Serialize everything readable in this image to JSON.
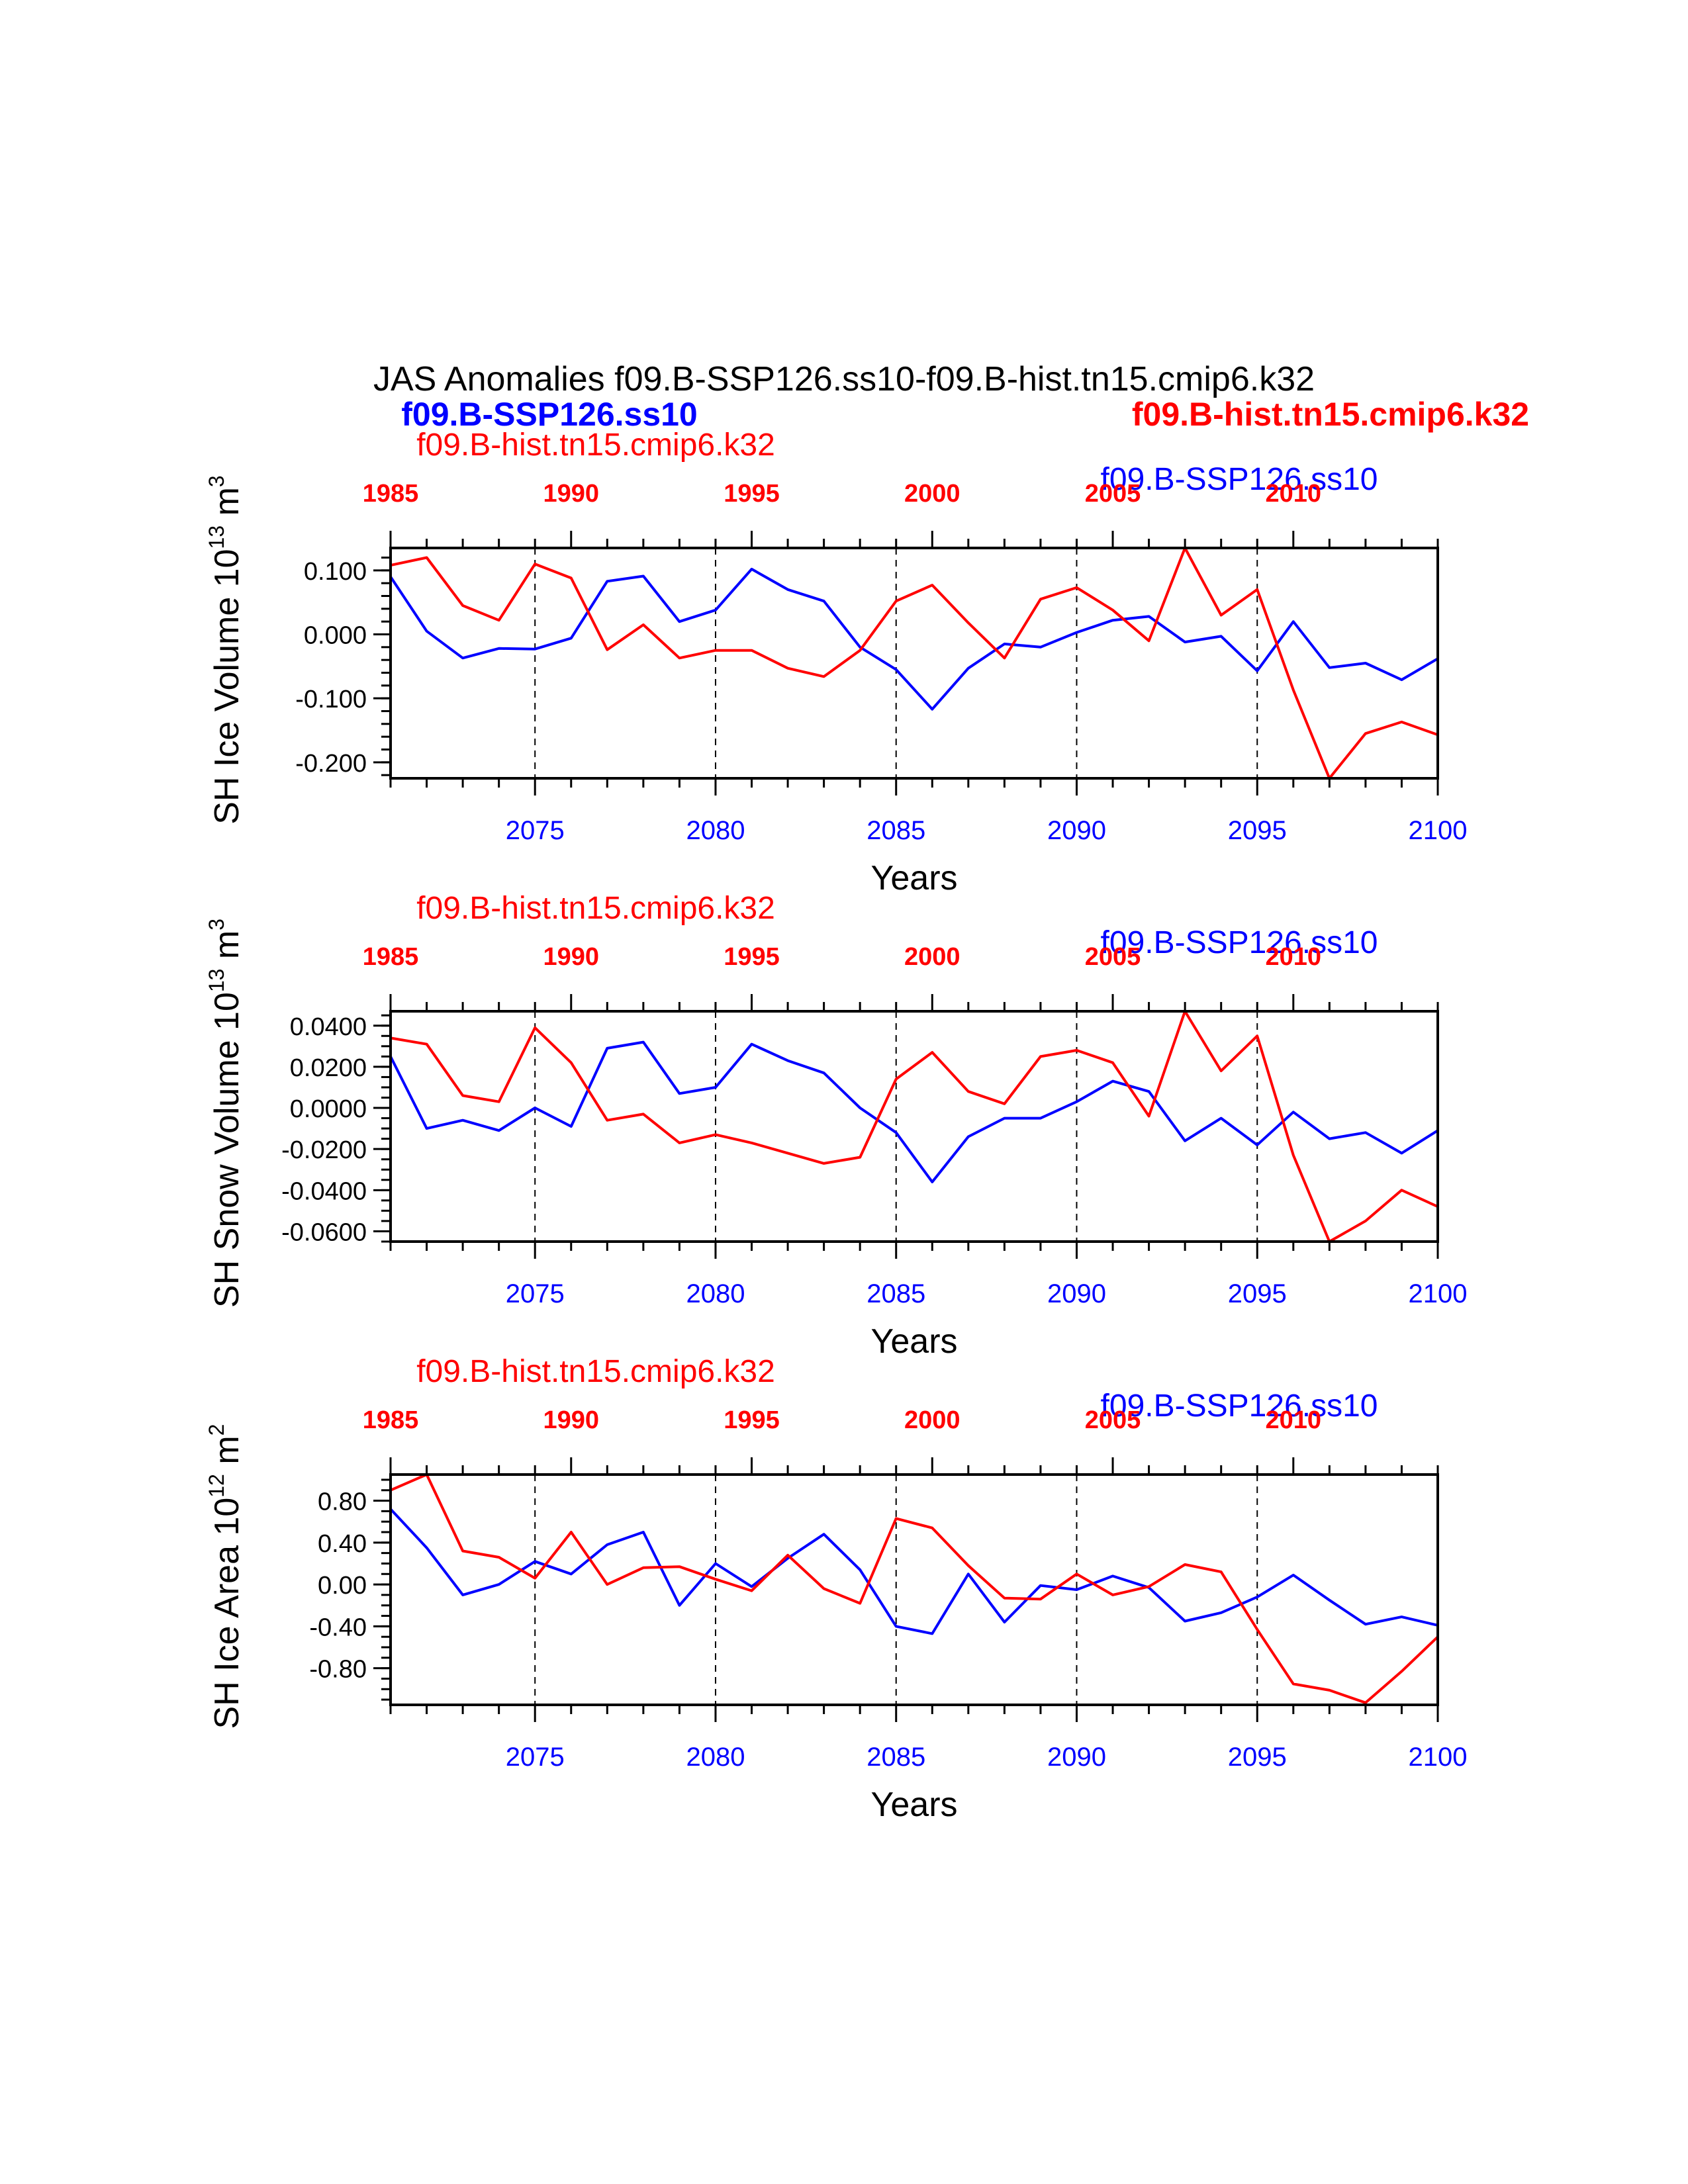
{
  "main_title": "JAS Anomalies f09.B-SSP126.ss10-f09.B-hist.tn15.cmip6.k32",
  "header_left_label": "f09.B-SSP126.ss10",
  "header_right_label": "f09.B-hist.tn15.cmip6.k32",
  "colors": {
    "blue": "#0000ff",
    "red": "#ff0000",
    "axis": "#000000"
  },
  "chart_data": [
    {
      "type": "line",
      "ylabel": "SH Ice Volume 10",
      "ylabel_exp": "13",
      "ylabel_unit": " m",
      "ylabel_unit_exp": "3",
      "xlabel": "Years",
      "left_label": "f09.B-hist.tn15.cmip6.k32",
      "right_label": "f09.B-SSP126.ss10",
      "xlim": [
        2071,
        2100
      ],
      "ylim": [
        -0.225,
        0.135
      ],
      "yticks": [
        0.1,
        0.0,
        -0.1,
        -0.2
      ],
      "ytick_labels": [
        "0.100",
        "0.000",
        "-0.100",
        "-0.200"
      ],
      "yminor_step": 0.02,
      "xticks": [
        2075,
        2080,
        2085,
        2090,
        2095,
        2100
      ],
      "xtick_labels": [
        "2075",
        "2080",
        "2085",
        "2090",
        "2095",
        "2100"
      ],
      "top_ticks": [
        "1985",
        "1990",
        "1995",
        "2000",
        "2005",
        "2010"
      ],
      "x": [
        2071,
        2072,
        2073,
        2074,
        2075,
        2076,
        2077,
        2078,
        2079,
        2080,
        2081,
        2082,
        2083,
        2084,
        2085,
        2086,
        2087,
        2088,
        2089,
        2090,
        2091,
        2092,
        2093,
        2094,
        2095,
        2096,
        2097,
        2098,
        2099,
        2100
      ],
      "series": [
        {
          "name": "f09.B-SSP126.ss10",
          "color": "#0000ff",
          "values": [
            0.09,
            0.005,
            -0.037,
            -0.022,
            -0.023,
            -0.006,
            0.083,
            0.091,
            0.02,
            0.038,
            0.102,
            0.07,
            0.052,
            -0.02,
            -0.055,
            -0.117,
            -0.053,
            -0.015,
            -0.02,
            0.003,
            0.022,
            0.028,
            -0.012,
            -0.003,
            -0.057,
            0.02,
            -0.052,
            -0.045,
            -0.071,
            -0.038
          ]
        },
        {
          "name": "f09.B-hist.tn15.cmip6.k32",
          "color": "#ff0000",
          "values": [
            0.108,
            0.12,
            0.045,
            0.022,
            0.11,
            0.088,
            -0.024,
            0.015,
            -0.037,
            -0.025,
            -0.025,
            -0.053,
            -0.066,
            -0.025,
            0.052,
            0.077,
            0.018,
            -0.037,
            0.055,
            0.073,
            0.038,
            -0.01,
            0.135,
            0.03,
            0.07,
            -0.087,
            -0.225,
            -0.155,
            -0.137,
            -0.157
          ]
        }
      ]
    },
    {
      "type": "line",
      "ylabel": "SH Snow Volume 10",
      "ylabel_exp": "13",
      "ylabel_unit": " m",
      "ylabel_unit_exp": "3",
      "xlabel": "Years",
      "left_label": "f09.B-hist.tn15.cmip6.k32",
      "right_label": "f09.B-SSP126.ss10",
      "xlim": [
        2071,
        2100
      ],
      "ylim": [
        -0.065,
        0.047
      ],
      "yticks": [
        0.04,
        0.02,
        0.0,
        -0.02,
        -0.04,
        -0.06
      ],
      "ytick_labels": [
        "0.0400",
        "0.0200",
        "0.0000",
        "-0.0200",
        "-0.0400",
        "-0.0600"
      ],
      "yminor_step": 0.005,
      "xticks": [
        2075,
        2080,
        2085,
        2090,
        2095,
        2100
      ],
      "xtick_labels": [
        "2075",
        "2080",
        "2085",
        "2090",
        "2095",
        "2100"
      ],
      "top_ticks": [
        "1985",
        "1990",
        "1995",
        "2000",
        "2005",
        "2010"
      ],
      "x": [
        2071,
        2072,
        2073,
        2074,
        2075,
        2076,
        2077,
        2078,
        2079,
        2080,
        2081,
        2082,
        2083,
        2084,
        2085,
        2086,
        2087,
        2088,
        2089,
        2090,
        2091,
        2092,
        2093,
        2094,
        2095,
        2096,
        2097,
        2098,
        2099,
        2100
      ],
      "series": [
        {
          "name": "f09.B-SSP126.ss10",
          "color": "#0000ff",
          "values": [
            0.025,
            -0.01,
            -0.006,
            -0.011,
            0.0,
            -0.009,
            0.029,
            0.032,
            0.007,
            0.01,
            0.031,
            0.023,
            0.017,
            0.0,
            -0.012,
            -0.036,
            -0.014,
            -0.005,
            -0.005,
            0.003,
            0.013,
            0.008,
            -0.016,
            -0.005,
            -0.018,
            -0.002,
            -0.015,
            -0.012,
            -0.022,
            -0.011
          ]
        },
        {
          "name": "f09.B-hist.tn15.cmip6.k32",
          "color": "#ff0000",
          "values": [
            0.034,
            0.031,
            0.006,
            0.003,
            0.039,
            0.022,
            -0.006,
            -0.003,
            -0.017,
            -0.013,
            -0.017,
            -0.022,
            -0.027,
            -0.024,
            0.014,
            0.027,
            0.008,
            0.002,
            0.025,
            0.028,
            0.022,
            -0.004,
            0.047,
            0.018,
            0.035,
            -0.023,
            -0.065,
            -0.055,
            -0.04,
            -0.048
          ]
        }
      ]
    },
    {
      "type": "line",
      "ylabel": "SH Ice Area 10",
      "ylabel_exp": "12",
      "ylabel_unit": " m",
      "ylabel_unit_exp": "2",
      "xlabel": "Years",
      "left_label": "f09.B-hist.tn15.cmip6.k32",
      "right_label": "f09.B-SSP126.ss10",
      "xlim": [
        2071,
        2100
      ],
      "ylim": [
        -1.15,
        1.05
      ],
      "yticks": [
        0.8,
        0.4,
        0.0,
        -0.4,
        -0.8
      ],
      "ytick_labels": [
        "0.80",
        "0.40",
        "0.00",
        "-0.40",
        "-0.80"
      ],
      "yminor_step": 0.1,
      "xticks": [
        2075,
        2080,
        2085,
        2090,
        2095,
        2100
      ],
      "xtick_labels": [
        "2075",
        "2080",
        "2085",
        "2090",
        "2095",
        "2100"
      ],
      "top_ticks": [
        "1985",
        "1990",
        "1995",
        "2000",
        "2005",
        "2010"
      ],
      "x": [
        2071,
        2072,
        2073,
        2074,
        2075,
        2076,
        2077,
        2078,
        2079,
        2080,
        2081,
        2082,
        2083,
        2084,
        2085,
        2086,
        2087,
        2088,
        2089,
        2090,
        2091,
        2092,
        2093,
        2094,
        2095,
        2096,
        2097,
        2098,
        2099,
        2100
      ],
      "series": [
        {
          "name": "f09.B-SSP126.ss10",
          "color": "#0000ff",
          "values": [
            0.72,
            0.35,
            -0.1,
            0.0,
            0.22,
            0.1,
            0.38,
            0.5,
            -0.2,
            0.2,
            -0.02,
            0.25,
            0.48,
            0.14,
            -0.4,
            -0.47,
            0.1,
            -0.36,
            -0.01,
            -0.05,
            0.08,
            -0.03,
            -0.35,
            -0.27,
            -0.12,
            0.09,
            -0.15,
            -0.38,
            -0.31,
            -0.39
          ]
        },
        {
          "name": "f09.B-hist.tn15.cmip6.k32",
          "color": "#ff0000",
          "values": [
            0.9,
            1.05,
            0.32,
            0.26,
            0.06,
            0.5,
            0.0,
            0.16,
            0.17,
            0.05,
            -0.06,
            0.28,
            -0.04,
            -0.18,
            0.63,
            0.54,
            0.18,
            -0.13,
            -0.14,
            0.1,
            -0.1,
            -0.02,
            0.19,
            0.12,
            -0.43,
            -0.95,
            -1.01,
            -1.13,
            -0.83,
            -0.5
          ]
        }
      ]
    }
  ]
}
